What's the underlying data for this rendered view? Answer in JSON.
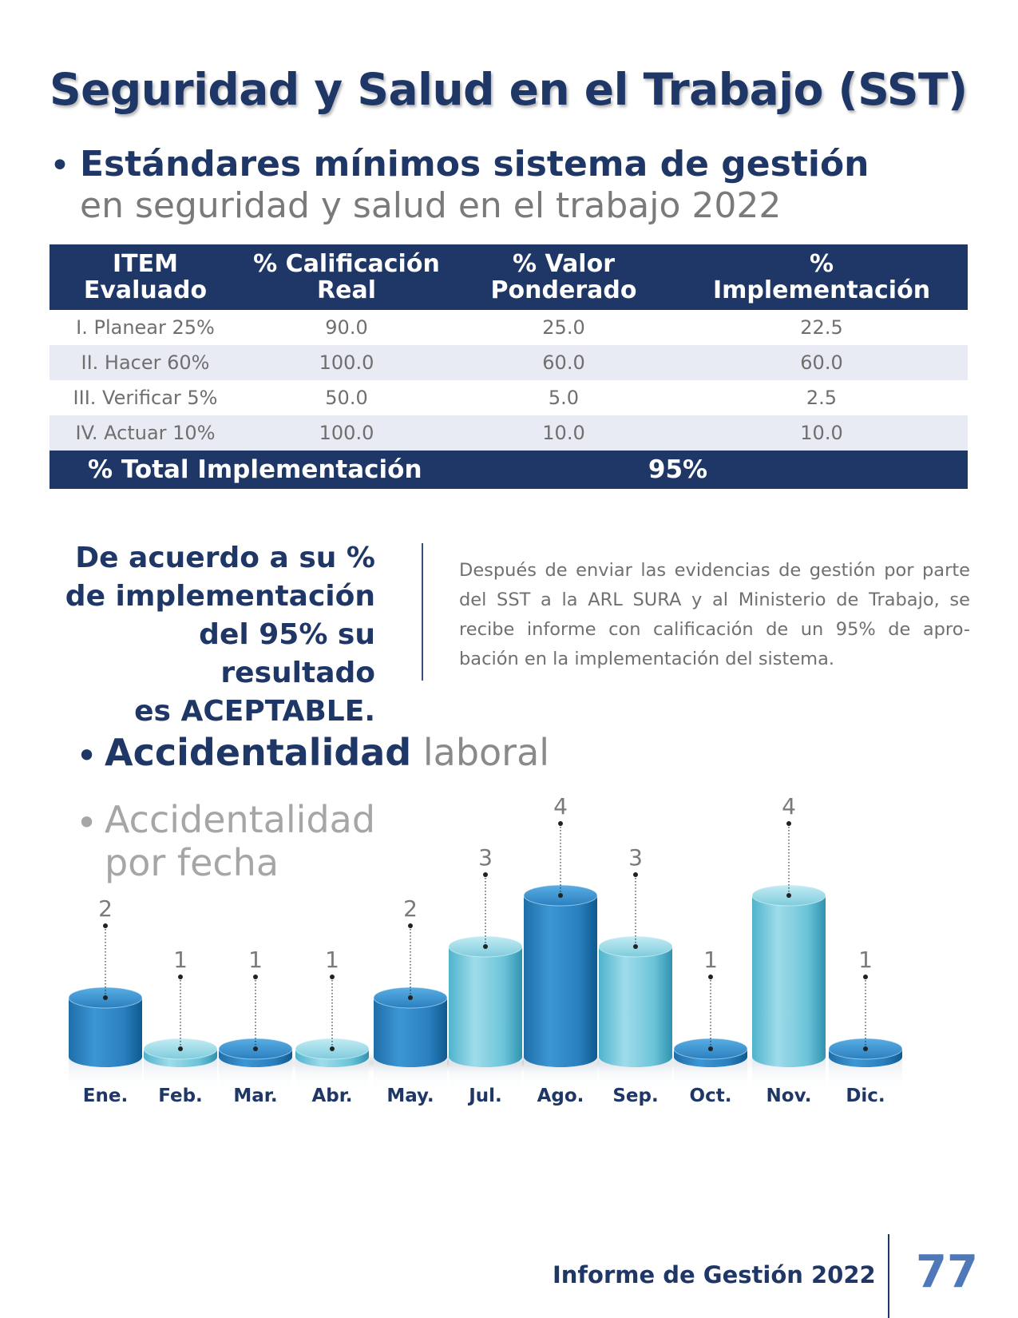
{
  "title": "Seguridad y Salud en el Trabajo (SST)",
  "section1": {
    "bullet": "•",
    "line1": "Estándares mínimos sistema de gestión",
    "line2": "en seguridad y salud en el trabajo 2022"
  },
  "table": {
    "headers": [
      [
        "ITEM",
        "Evaluado"
      ],
      [
        "% Calificación",
        "Real"
      ],
      [
        "% Valor",
        "Ponderado"
      ],
      [
        "%",
        "Implementación"
      ]
    ],
    "rows": [
      [
        "I. Planear 25%",
        "90.0",
        "25.0",
        "22.5"
      ],
      [
        "II. Hacer 60%",
        "100.0",
        "60.0",
        "60.0"
      ],
      [
        "III. Verificar 5%",
        "50.0",
        "5.0",
        "2.5"
      ],
      [
        "IV. Actuar 10%",
        "100.0",
        "10.0",
        "10.0"
      ]
    ],
    "total_label": "% Total Implementación",
    "total_value": "95%"
  },
  "result_lines": [
    "De acuerdo a su %",
    "de implementación",
    "del 95% su resultado",
    "es ACEPTABLE."
  ],
  "note": "Después de enviar las evidencias de gestión por parte del SST a la ARL SURA y al Ministerio de Trabajo, se recibe informe con calificación de un 95% de apro- bación en la implementación del sistema.",
  "section2": {
    "bullet1": "•",
    "heading_bold": "Accidentalidad",
    "heading_light": "laboral",
    "bullet2": "•",
    "sub_line1": "Accidentalidad",
    "sub_line2": "por fecha"
  },
  "chart_data": {
    "type": "bar",
    "categories": [
      "Ene.",
      "Feb.",
      "Mar.",
      "Abr.",
      "May.",
      "Jul.",
      "Ago.",
      "Sep.",
      "Oct.",
      "Nov.",
      "Dic."
    ],
    "values": [
      2,
      1,
      1,
      1,
      2,
      3,
      4,
      3,
      1,
      4,
      1
    ],
    "ylim": [
      0,
      4
    ],
    "colors": {
      "dark": "#2f86c6",
      "light": "#7fcbdc"
    },
    "bar_tones": [
      "dark",
      "light",
      "dark",
      "light",
      "dark",
      "light",
      "dark",
      "light",
      "dark",
      "light",
      "dark"
    ]
  },
  "footer": {
    "text": "Informe de Gestión 2022",
    "page": "77"
  }
}
